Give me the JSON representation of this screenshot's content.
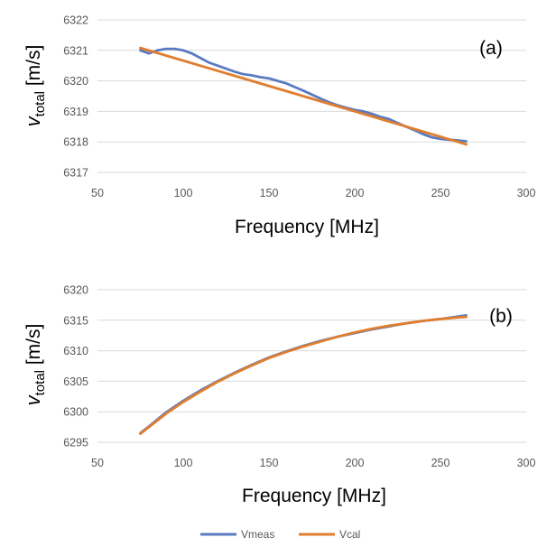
{
  "chart_data": [
    {
      "type": "line",
      "panel_label": "(a)",
      "xlabel": "Frequency [MHz]",
      "ylabel": {
        "main": "v",
        "sub": "total",
        "unit": " [m/s]"
      },
      "xlim": [
        50,
        300
      ],
      "ylim": [
        6317,
        6322
      ],
      "xticks": [
        50,
        100,
        150,
        200,
        250,
        300
      ],
      "yticks": [
        6317,
        6318,
        6319,
        6320,
        6321,
        6322
      ],
      "grid": "horizontal",
      "series": [
        {
          "name": "Vmeas",
          "color": "#5B7BC0",
          "x": [
            75,
            80,
            85,
            90,
            95,
            100,
            105,
            110,
            115,
            120,
            125,
            130,
            135,
            140,
            145,
            150,
            155,
            160,
            165,
            170,
            175,
            180,
            185,
            190,
            195,
            200,
            205,
            210,
            215,
            220,
            225,
            230,
            235,
            240,
            245,
            250,
            255,
            260,
            265
          ],
          "y": [
            6321.0,
            6320.9,
            6321.0,
            6321.05,
            6321.05,
            6321.0,
            6320.9,
            6320.75,
            6320.6,
            6320.5,
            6320.4,
            6320.3,
            6320.22,
            6320.18,
            6320.12,
            6320.08,
            6320.0,
            6319.92,
            6319.8,
            6319.68,
            6319.55,
            6319.42,
            6319.3,
            6319.2,
            6319.12,
            6319.05,
            6319.0,
            6318.92,
            6318.82,
            6318.75,
            6318.62,
            6318.5,
            6318.38,
            6318.25,
            6318.15,
            6318.1,
            6318.07,
            6318.05,
            6318.02
          ]
        },
        {
          "name": "Vcal",
          "color": "#E07D2E",
          "x": [
            75,
            265
          ],
          "y": [
            6321.08,
            6317.92
          ]
        }
      ]
    },
    {
      "type": "line",
      "panel_label": "(b)",
      "xlabel": "Frequency [MHz]",
      "ylabel": {
        "main": "v",
        "sub": "total",
        "unit": " [m/s]"
      },
      "xlim": [
        50,
        300
      ],
      "ylim": [
        6295,
        6320
      ],
      "xticks": [
        50,
        100,
        150,
        200,
        250,
        300
      ],
      "yticks": [
        6295,
        6300,
        6305,
        6310,
        6315,
        6320
      ],
      "grid": "horizontal",
      "series": [
        {
          "name": "Vmeas",
          "color": "#5B7BC0",
          "x": [
            75,
            80,
            90,
            100,
            110,
            120,
            130,
            140,
            150,
            160,
            170,
            180,
            190,
            200,
            210,
            220,
            230,
            240,
            250,
            260,
            265
          ],
          "y": [
            6296.5,
            6297.6,
            6299.9,
            6301.8,
            6303.5,
            6305.0,
            6306.4,
            6307.7,
            6308.9,
            6309.9,
            6310.8,
            6311.6,
            6312.3,
            6312.9,
            6313.5,
            6314.0,
            6314.5,
            6314.9,
            6315.2,
            6315.6,
            6315.8
          ]
        },
        {
          "name": "Vcal",
          "color": "#E07D2E",
          "x": [
            75,
            80,
            90,
            100,
            110,
            120,
            130,
            140,
            150,
            160,
            170,
            180,
            190,
            200,
            210,
            220,
            230,
            240,
            250,
            260,
            265
          ],
          "y": [
            6296.4,
            6297.5,
            6299.7,
            6301.6,
            6303.3,
            6304.9,
            6306.3,
            6307.6,
            6308.8,
            6309.8,
            6310.7,
            6311.5,
            6312.3,
            6313.0,
            6313.6,
            6314.1,
            6314.5,
            6314.9,
            6315.2,
            6315.45,
            6315.55
          ]
        }
      ]
    }
  ],
  "legend": {
    "placement": "bottom-center",
    "items": [
      {
        "name": "Vmeas",
        "color": "#5B7BC0"
      },
      {
        "name": "Vcal",
        "color": "#E07D2E"
      }
    ]
  },
  "colors": {
    "grid": "#D9D9D9",
    "tick_text": "#595959",
    "axis_text": "#000000"
  }
}
